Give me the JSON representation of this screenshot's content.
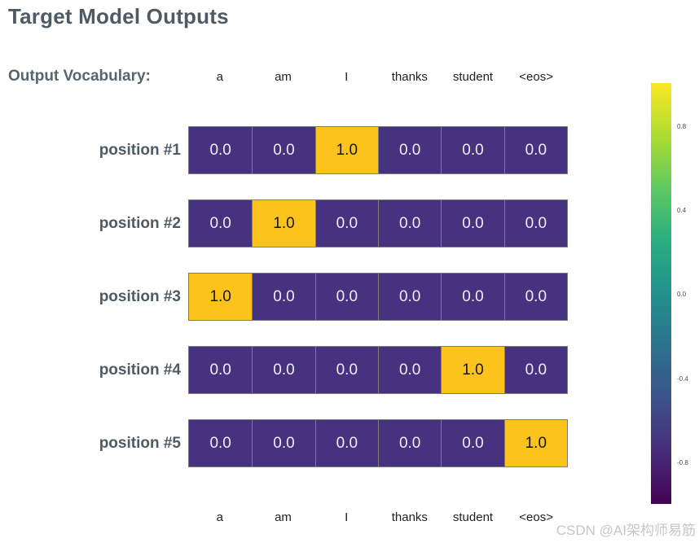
{
  "title": "Target Model Outputs",
  "vocab_section": {
    "label": "Output Vocabulary:"
  },
  "vocabulary": [
    "a",
    "am",
    "I",
    "thanks",
    "student",
    "<eos>"
  ],
  "rows": [
    {
      "label": "position #1",
      "cells": [
        "0.0",
        "0.0",
        "1.0",
        "0.0",
        "0.0",
        "0.0"
      ]
    },
    {
      "label": "position #2",
      "cells": [
        "0.0",
        "1.0",
        "0.0",
        "0.0",
        "0.0",
        "0.0"
      ]
    },
    {
      "label": "position #3",
      "cells": [
        "1.0",
        "0.0",
        "0.0",
        "0.0",
        "0.0",
        "0.0"
      ]
    },
    {
      "label": "position #4",
      "cells": [
        "0.0",
        "0.0",
        "0.0",
        "0.0",
        "1.0",
        "0.0"
      ]
    },
    {
      "label": "position #5",
      "cells": [
        "0.0",
        "0.0",
        "0.0",
        "0.0",
        "0.0",
        "1.0"
      ]
    }
  ],
  "colorbar": {
    "ticks": [
      "0.8",
      "0.4",
      "0.0",
      "-0.4",
      "-0.8"
    ],
    "colormap": "viridis",
    "range": [
      -1,
      1
    ]
  },
  "watermark": "CSDN @AI架构师易筋",
  "colors": {
    "cell_low": "#46327e",
    "cell_high": "#fcc31d",
    "cell_border": "#7d7d7d",
    "heading": "#4e5a64"
  },
  "chart_data": {
    "type": "heatmap",
    "title": "Target Model Outputs",
    "x_categories": [
      "a",
      "am",
      "I",
      "thanks",
      "student",
      "<eos>"
    ],
    "x_axis_label": "Output Vocabulary",
    "y_categories": [
      "position #1",
      "position #2",
      "position #3",
      "position #4",
      "position #5"
    ],
    "values": [
      [
        0.0,
        0.0,
        1.0,
        0.0,
        0.0,
        0.0
      ],
      [
        0.0,
        1.0,
        0.0,
        0.0,
        0.0,
        0.0
      ],
      [
        1.0,
        0.0,
        0.0,
        0.0,
        0.0,
        0.0
      ],
      [
        0.0,
        0.0,
        0.0,
        0.0,
        1.0,
        0.0
      ],
      [
        0.0,
        0.0,
        0.0,
        0.0,
        0.0,
        1.0
      ]
    ],
    "cell_labels_shown": true,
    "colorbar": {
      "position": "right",
      "colormap": "viridis",
      "range": [
        -1,
        1
      ],
      "ticks": [
        0.8,
        0.4,
        0.0,
        -0.4,
        -0.8
      ]
    },
    "grid": false,
    "legend_position": "none"
  }
}
